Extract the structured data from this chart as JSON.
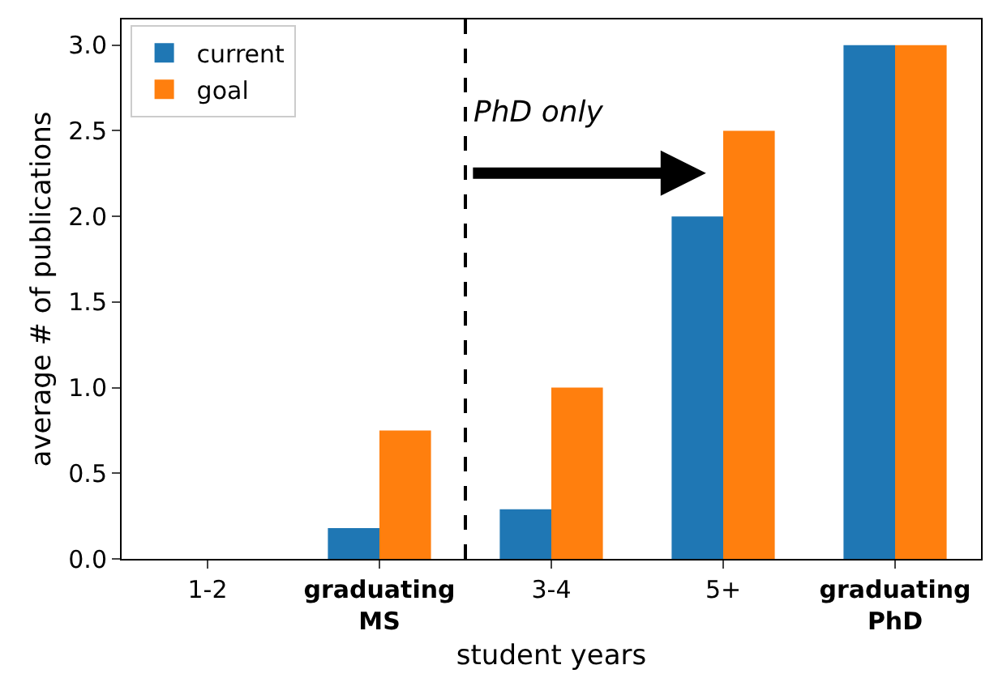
{
  "chart_data": {
    "type": "bar",
    "xlabel": "student years",
    "ylabel": "average # of publications",
    "categories": [
      "1-2",
      "graduating\nMS",
      "3-4",
      "5+",
      "graduating\nPhD"
    ],
    "series": [
      {
        "name": "current",
        "color": "#1f77b4",
        "values": [
          0,
          0.18,
          0.29,
          2.0,
          3.0
        ]
      },
      {
        "name": "goal",
        "color": "#ff7f0e",
        "values": [
          0,
          0.75,
          1.0,
          2.5,
          3.0
        ]
      }
    ],
    "ylim": [
      0,
      3.15
    ],
    "yticks": [
      {
        "value": 0,
        "label": "0.0"
      },
      {
        "value": 0.5,
        "label": "0.5"
      },
      {
        "value": 1,
        "label": "1.0"
      },
      {
        "value": 1.5,
        "label": "1.5"
      },
      {
        "value": 2,
        "label": "2.0"
      },
      {
        "value": 2.5,
        "label": "2.5"
      },
      {
        "value": 3,
        "label": "3.0"
      }
    ],
    "annotations": [
      "PhD only"
    ],
    "legend": "top left",
    "grid": false
  }
}
